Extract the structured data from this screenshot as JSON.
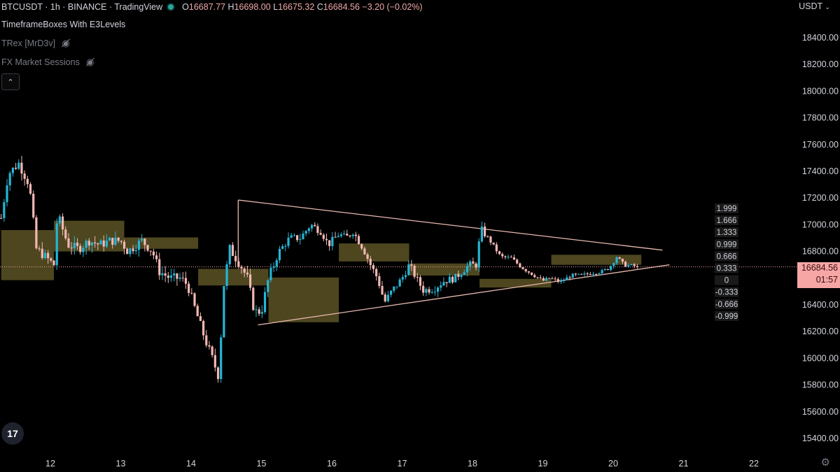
{
  "header": {
    "symbol_line": "BTCUSDT · 1h · BINANCE · TradingView",
    "ohlc": {
      "o_label": "O",
      "o": "16687.77",
      "h_label": "H",
      "h": "16698.00",
      "l_label": "L",
      "l": "16675.32",
      "c_label": "C",
      "c": "16684.56",
      "change": "−3.20 (−0.02%)"
    },
    "currency": "USDT"
  },
  "indicators": [
    {
      "name": "TimeframeBoxes With E3Levels",
      "visible": true
    },
    {
      "name": "TRex [MrD3v]",
      "visible": false,
      "icon": "eye-off-icon"
    },
    {
      "name": "FX Market Sessions",
      "visible": false,
      "icon": "eye-off-icon"
    }
  ],
  "collapse_glyph": "⌃",
  "price_tag": {
    "price": "16684.56",
    "countdown": "01:57"
  },
  "logo_text": "17",
  "colors": {
    "up": "#26b5d4",
    "down": "#f2b8b3",
    "box": "#5a5224",
    "trend": "#e8b8b0",
    "price_tag": "#f7a6a6"
  },
  "chart_data": {
    "type": "candlestick",
    "y_axis": {
      "min": 15300,
      "max": 18600,
      "ticks": [
        "18400.00",
        "18200.00",
        "18000.00",
        "17800.00",
        "17600.00",
        "17400.00",
        "17200.00",
        "17000.00",
        "16800.00",
        "16600.00",
        "16400.00",
        "16200.00",
        "16000.00",
        "15800.00",
        "15600.00",
        "15400.00"
      ],
      "tick_values": [
        18400,
        18200,
        18000,
        17800,
        17600,
        17400,
        17200,
        17000,
        16800,
        16600,
        16400,
        16200,
        16000,
        15800,
        15600,
        15400
      ]
    },
    "x_axis": {
      "ticks": [
        "12",
        "13",
        "14",
        "15",
        "16",
        "17",
        "18",
        "19",
        "20",
        "21",
        "22"
      ],
      "tick_days": [
        12,
        13,
        14,
        15,
        16,
        17,
        18,
        19,
        20,
        21,
        22
      ],
      "min_day": 11.3,
      "max_day": 22.65
    },
    "last_price": 16684.56,
    "fib_levels": [
      "1.999",
      "1.666",
      "1.333",
      "0.999",
      "0.666",
      "0.333",
      "0",
      "-0.333",
      "-0.666",
      "-0.999"
    ],
    "triangle": {
      "upper": [
        [
          14.67,
          17185
        ],
        [
          20.7,
          16810
        ]
      ],
      "lower": [
        [
          14.95,
          16250
        ],
        [
          20.8,
          16700
        ]
      ],
      "left_edge": [
        [
          14.67,
          17185
        ],
        [
          14.67,
          16720
        ]
      ]
    },
    "boxes": [
      {
        "x0": 11.3,
        "x1": 12.05,
        "y0": 16585,
        "y1": 16960
      },
      {
        "x0": 12.05,
        "x1": 13.05,
        "y0": 16800,
        "y1": 17030
      },
      {
        "x0": 13.05,
        "x1": 14.1,
        "y0": 16820,
        "y1": 16905
      },
      {
        "x0": 14.1,
        "x1": 15.1,
        "y0": 16545,
        "y1": 16670
      },
      {
        "x0": 15.1,
        "x1": 16.1,
        "y0": 16270,
        "y1": 16605
      },
      {
        "x0": 16.1,
        "x1": 17.1,
        "y0": 16725,
        "y1": 16860
      },
      {
        "x0": 17.1,
        "x1": 18.1,
        "y0": 16620,
        "y1": 16710
      },
      {
        "x0": 18.1,
        "x1": 19.12,
        "y0": 16530,
        "y1": 16595
      },
      {
        "x0": 19.12,
        "x1": 20.4,
        "y0": 16700,
        "y1": 16775
      }
    ],
    "candle_anchors": [
      [
        11.3,
        17050
      ],
      [
        11.4,
        17380
      ],
      [
        11.55,
        17460
      ],
      [
        11.7,
        17300
      ],
      [
        11.8,
        16820
      ],
      [
        11.95,
        16750
      ],
      [
        12.05,
        16700
      ],
      [
        12.1,
        17080
      ],
      [
        12.25,
        16850
      ],
      [
        12.4,
        16820
      ],
      [
        12.55,
        16880
      ],
      [
        12.7,
        16850
      ],
      [
        12.85,
        16880
      ],
      [
        13.0,
        16880
      ],
      [
        13.1,
        16800
      ],
      [
        13.3,
        16880
      ],
      [
        13.45,
        16800
      ],
      [
        13.55,
        16650
      ],
      [
        13.7,
        16600
      ],
      [
        13.85,
        16600
      ],
      [
        13.95,
        16550
      ],
      [
        14.05,
        16380
      ],
      [
        14.2,
        16140
      ],
      [
        14.3,
        16000
      ],
      [
        14.4,
        15850
      ],
      [
        14.45,
        16500
      ],
      [
        14.55,
        16820
      ],
      [
        14.7,
        16700
      ],
      [
        14.8,
        16600
      ],
      [
        14.9,
        16350
      ],
      [
        15.0,
        16350
      ],
      [
        15.1,
        16600
      ],
      [
        15.25,
        16800
      ],
      [
        15.4,
        16900
      ],
      [
        15.55,
        16900
      ],
      [
        15.7,
        17000
      ],
      [
        15.85,
        16950
      ],
      [
        15.95,
        16850
      ],
      [
        16.1,
        16930
      ],
      [
        16.2,
        16900
      ],
      [
        16.3,
        16950
      ],
      [
        16.45,
        16820
      ],
      [
        16.55,
        16700
      ],
      [
        16.65,
        16600
      ],
      [
        16.75,
        16420
      ],
      [
        16.85,
        16500
      ],
      [
        17.0,
        16600
      ],
      [
        17.1,
        16700
      ],
      [
        17.2,
        16600
      ],
      [
        17.3,
        16510
      ],
      [
        17.45,
        16520
      ],
      [
        17.6,
        16580
      ],
      [
        17.75,
        16600
      ],
      [
        17.85,
        16650
      ],
      [
        17.95,
        16700
      ],
      [
        18.05,
        16700
      ],
      [
        18.12,
        16970
      ],
      [
        18.25,
        16880
      ],
      [
        18.4,
        16760
      ],
      [
        18.55,
        16750
      ],
      [
        18.7,
        16680
      ],
      [
        18.85,
        16630
      ],
      [
        19.0,
        16580
      ],
      [
        19.1,
        16600
      ],
      [
        19.25,
        16570
      ],
      [
        19.4,
        16620
      ],
      [
        19.55,
        16620
      ],
      [
        19.7,
        16640
      ],
      [
        19.85,
        16650
      ],
      [
        19.95,
        16680
      ],
      [
        20.05,
        16760
      ],
      [
        20.15,
        16700
      ],
      [
        20.3,
        16690
      ],
      [
        20.37,
        16685
      ]
    ]
  }
}
